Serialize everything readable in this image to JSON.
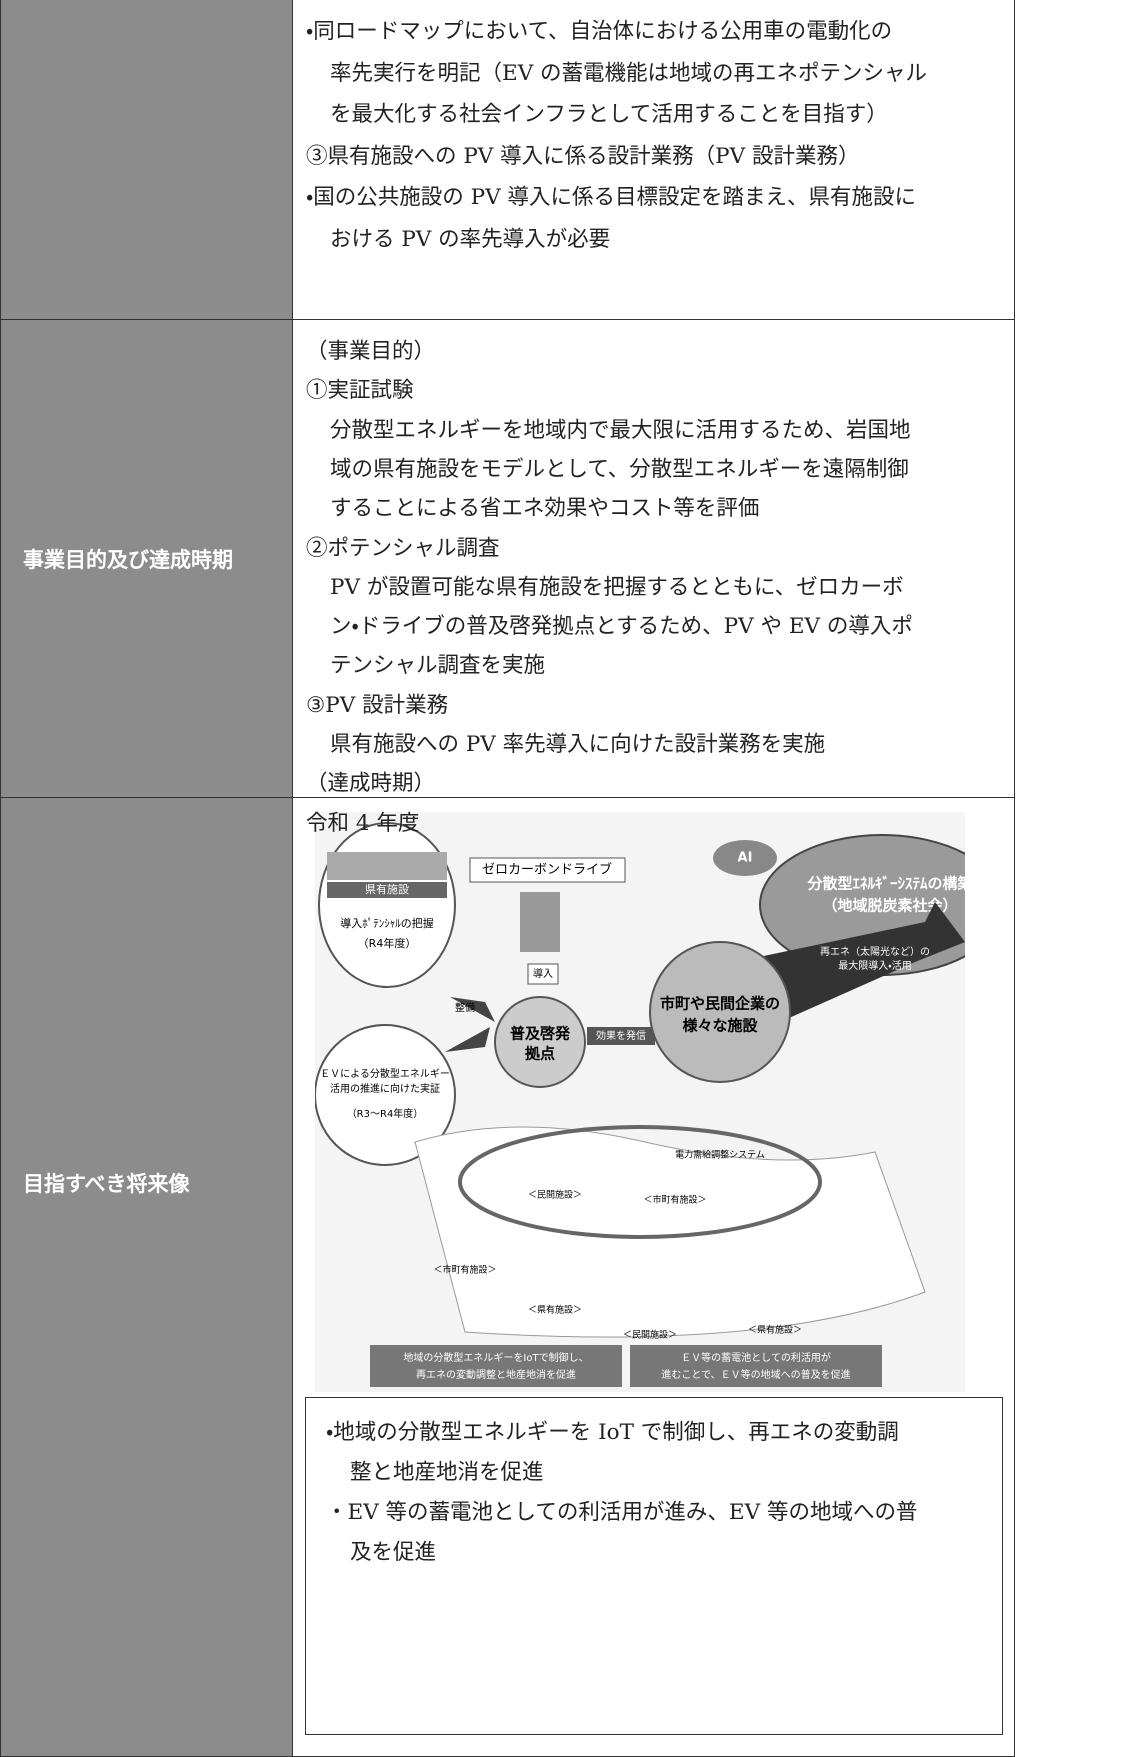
{
  "rows": [
    {
      "label": null,
      "paragraphs": [
        [
          "・同ロードマップにおいて、自治体における公用車の電動化の",
          "率先実行を明記（EV の蓄電機能は地域の再エネポテンシャル",
          "を最大化する社会インフラとして活用することを目指す）"
        ],
        [
          "③県有施設への PV 導入に係る設計業務（PV 設計業務）"
        ],
        [
          "・国の公共施設の PV 導入に係る目標設定を踏まえ、県有施設に",
          "おける PV の率先導入が必要"
        ]
      ]
    },
    {
      "label": "事業目的及び達成時期",
      "paragraphs": [
        [
          "（事業目的）"
        ],
        [
          "①実証試験"
        ],
        [
          "分散型エネルギーを地域内で最大限に活用するため、岩国地",
          "域の県有施設をモデルとして、分散型エネルギーを遠隔制御",
          "することによる省エネ効果やコスト等を評価"
        ],
        [
          "②ポテンシャル調査"
        ],
        [
          "PV が設置可能な県有施設を把握するとともに、ゼロカーボ",
          "ン・ドライブの普及啓発拠点とするため、PV や EV の導入ポ",
          "テンシャル調査を実施"
        ],
        [
          "③PV 設計業務"
        ],
        [
          "県有施設への PV 率先導入に向けた設計業務を実施"
        ],
        [
          "（達成時期）"
        ],
        [
          "令和 4 年度"
        ]
      ]
    },
    {
      "label": "目指すべき将来像",
      "diagram": {
        "zero_carbon": "ゼロカーボンドライブ",
        "ai": "AI",
        "system": [
          "分散型ｴﾈﾙｷﾞｰｼｽﾃﾑの構築",
          "（地域脱炭素社会）"
        ],
        "pref": [
          "県有施設",
          "導入ﾎﾟﾃﾝｼｬﾙの把握",
          "（R4年度）"
        ],
        "intro": "導入",
        "maint": "整備",
        "hub": [
          "普及啓発",
          "拠点"
        ],
        "send": "効果を発信",
        "facilities": [
          "市町や民間企業の",
          "様々な施設"
        ],
        "renew": [
          "再エネ（太陽光など）の",
          "最大限導入・活用"
        ],
        "ev": [
          "ＥＶによる分散型エネルギー",
          "活用の推進に向けた実証",
          "（R3～R4年度）"
        ],
        "grid": "電力需給調整システム",
        "sites": [
          "＜民間施設＞",
          "＜市町有施設＞",
          "＜市町有施設＞",
          "＜県有施設＞",
          "＜民間施設＞",
          "＜県有施設＞"
        ],
        "box1": [
          "地域の分散型エネルギーをIoTで制御し、",
          "再エネの変動調整と地産地消を促進"
        ],
        "box2": [
          "ＥＶ等の蓄電池としての利活用が",
          "進むことで、ＥＶ等の地域への普及を促進"
        ]
      },
      "summary": [
        [
          "・地域の分散型エネルギーを IoT で制御し、再エネの変動調",
          "整と地産地消を促進"
        ],
        [
          "・EV 等の蓄電池としての利活用が進み、EV 等の地域への普",
          "及を促進"
        ]
      ]
    }
  ]
}
